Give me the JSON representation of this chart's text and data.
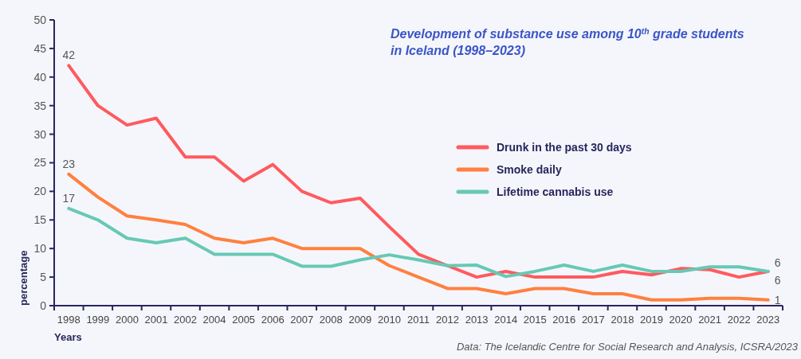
{
  "chart_data": {
    "type": "line",
    "title": "Development of substance use among 10$^{th}$ grade students in Iceland (1998–2023)",
    "xlabel": "Years",
    "ylabel": "percentage",
    "annotations": [
      "Data: The Icelandic Centre for Social Research and Analysis, ICSRA/2023"
    ],
    "categories": [
      "1998",
      "1999",
      "2000",
      "2001",
      "2002",
      "2004",
      "2005",
      "2006",
      "2007",
      "2008",
      "2009",
      "2010",
      "2011",
      "2012",
      "2013",
      "2014",
      "2015",
      "2016",
      "2017",
      "2018",
      "2019",
      "2020",
      "2021",
      "2022",
      "2023"
    ],
    "series": [
      {
        "name": "Drunk in the past 30 days",
        "color": "#ff5a5f",
        "values": [
          42,
          35,
          31.6,
          32.8,
          26,
          26,
          21.8,
          24.7,
          20,
          18,
          18.8,
          13.8,
          9,
          7,
          5,
          6,
          5,
          5,
          5,
          6,
          5.4,
          6.5,
          6.3,
          5,
          6
        ],
        "value_labels": [
          "42",
          null,
          null,
          null,
          null,
          null,
          null,
          null,
          null,
          null,
          null,
          null,
          null,
          null,
          null,
          null,
          null,
          null,
          null,
          null,
          null,
          null,
          null,
          null,
          "6"
        ]
      },
      {
        "name": "Smoke daily",
        "color": "#ff8040",
        "values": [
          23,
          19,
          15.7,
          15,
          14.2,
          11.8,
          11,
          11.8,
          10,
          10,
          10,
          7,
          5,
          3,
          3,
          2.1,
          3,
          3,
          2.1,
          2.1,
          1,
          1,
          1.3,
          1.3,
          1
        ],
        "value_labels": [
          "23",
          null,
          null,
          null,
          null,
          null,
          null,
          null,
          null,
          null,
          null,
          null,
          null,
          null,
          null,
          null,
          null,
          null,
          null,
          null,
          null,
          null,
          null,
          null,
          "1"
        ]
      },
      {
        "name": "Lifetime cannabis use",
        "color": "#66c9b5",
        "values": [
          17,
          15,
          11.8,
          11,
          11.8,
          9,
          9,
          9,
          6.9,
          6.9,
          8,
          8.9,
          8,
          7,
          7.1,
          5.1,
          6,
          7.1,
          6,
          7.1,
          6,
          6,
          6.8,
          6.8,
          6
        ],
        "value_labels": [
          "17",
          null,
          null,
          null,
          null,
          null,
          null,
          null,
          null,
          null,
          null,
          null,
          null,
          null,
          null,
          null,
          null,
          null,
          null,
          null,
          null,
          null,
          null,
          null,
          "6"
        ]
      }
    ],
    "ylim": [
      0,
      50
    ],
    "yticks": [
      0,
      5,
      10,
      15,
      20,
      25,
      30,
      35,
      40,
      45,
      50
    ],
    "grid": false,
    "legend": "right",
    "marker": "none",
    "line_style": "solid"
  }
}
